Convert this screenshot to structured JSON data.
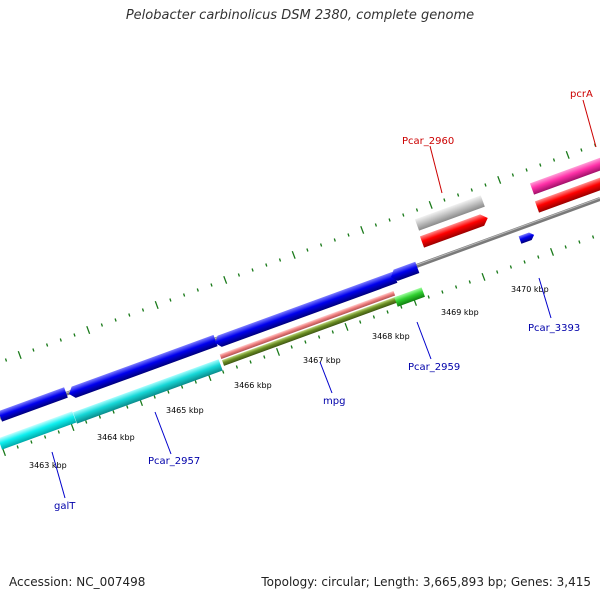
{
  "title": "Pelobacter carbinolicus DSM 2380, complete genome",
  "accession": "Accession: NC_007498",
  "stats": "Topology: circular; Length: 3,665,893 bp; Genes: 3,415",
  "colors": {
    "backbone": "#808080",
    "ticks": "#1a7a1a",
    "label_blue": "#0000aa",
    "label_red": "#cc0000",
    "callout": "#0000cc"
  },
  "scale_labels": [
    "3463 kbp",
    "3464 kbp",
    "3465 kbp",
    "3466 kbp",
    "3467 kbp",
    "3468 kbp",
    "3469 kbp",
    "3470 kbp"
  ],
  "gene_labels": [
    {
      "name": "galT",
      "color": "blue"
    },
    {
      "name": "Pcar_2957",
      "color": "blue"
    },
    {
      "name": "mpg",
      "color": "blue"
    },
    {
      "name": "Pcar_2959",
      "color": "blue"
    },
    {
      "name": "Pcar_3393",
      "color": "blue"
    },
    {
      "name": "Pcar_2960",
      "color": "red"
    },
    {
      "name": "pcrA",
      "color": "red"
    }
  ]
}
